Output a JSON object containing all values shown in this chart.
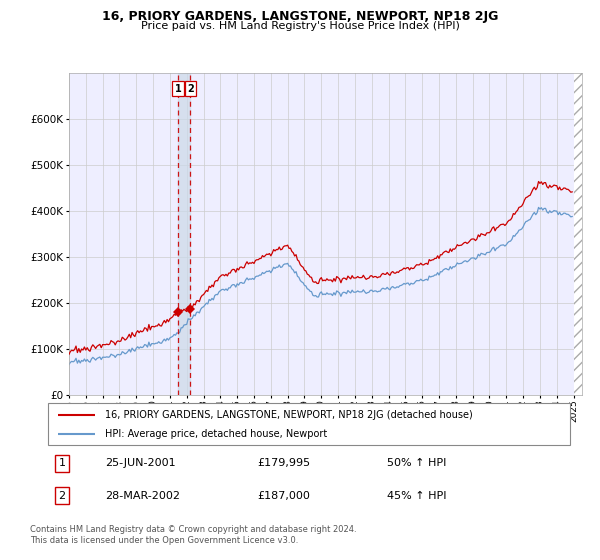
{
  "title": "16, PRIORY GARDENS, LANGSTONE, NEWPORT, NP18 2JG",
  "subtitle": "Price paid vs. HM Land Registry's House Price Index (HPI)",
  "legend_line1": "16, PRIORY GARDENS, LANGSTONE, NEWPORT, NP18 2JG (detached house)",
  "legend_line2": "HPI: Average price, detached house, Newport",
  "sale1_date": "25-JUN-2001",
  "sale1_price": "£179,995",
  "sale1_hpi": "50% ↑ HPI",
  "sale2_date": "28-MAR-2002",
  "sale2_price": "£187,000",
  "sale2_hpi": "45% ↑ HPI",
  "footer": "Contains HM Land Registry data © Crown copyright and database right 2024.\nThis data is licensed under the Open Government Licence v3.0.",
  "hpi_color": "#6699cc",
  "price_color": "#cc0000",
  "sale_marker_color": "#cc0000",
  "vline_color": "#cc0000",
  "vshade_color": "#ccd9e8",
  "grid_color": "#cccccc",
  "background_color": "#eeeeff",
  "ylim": [
    0,
    700000
  ],
  "yticks": [
    0,
    100000,
    200000,
    300000,
    400000,
    500000,
    600000
  ],
  "sale1_x_year": 2001.47,
  "sale2_x_year": 2002.22,
  "sale1_y": 179995,
  "sale2_y": 187000,
  "xmin": 1995.0,
  "xmax": 2025.5
}
